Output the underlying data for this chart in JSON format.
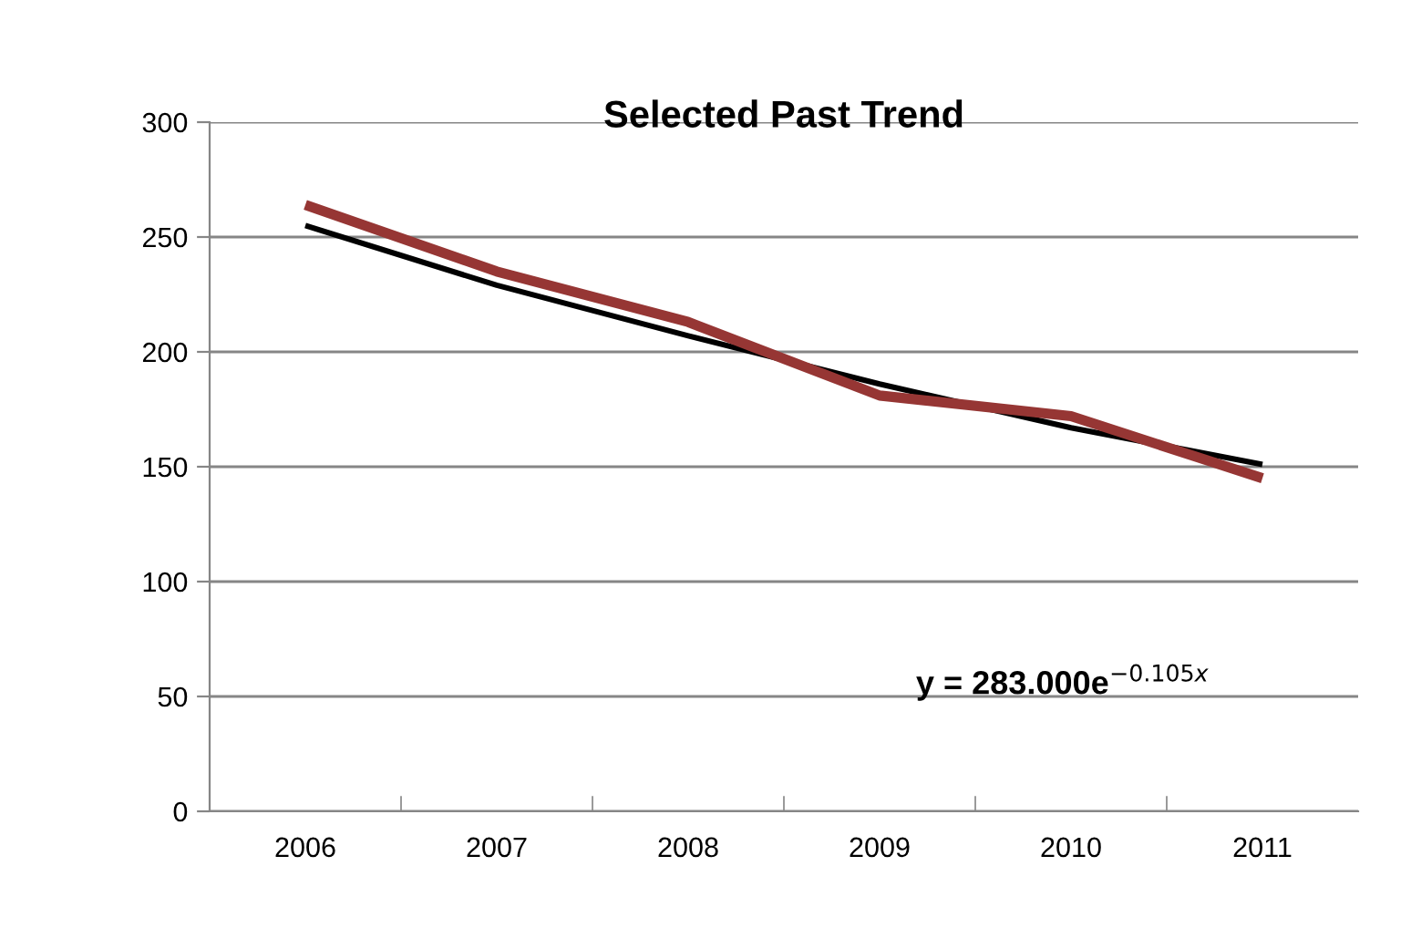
{
  "chart_data": {
    "type": "line",
    "title": "Selected Past Trend",
    "categories": [
      "2006",
      "2007",
      "2008",
      "2009",
      "2010",
      "2011"
    ],
    "series": [
      {
        "color": "#963634",
        "values": [
          264,
          235,
          213,
          181,
          172,
          145
        ]
      },
      {
        "color": "#000000",
        "values": [
          255,
          229,
          207,
          186,
          167,
          151
        ]
      }
    ],
    "ylim": [
      0,
      300
    ],
    "yticks": [
      0,
      50,
      100,
      150,
      200,
      250,
      300
    ],
    "grid": "y",
    "marker": "none",
    "line_style": "solid",
    "annotations": [
      "y = 283.000e$^{−0.105x}$"
    ]
  }
}
